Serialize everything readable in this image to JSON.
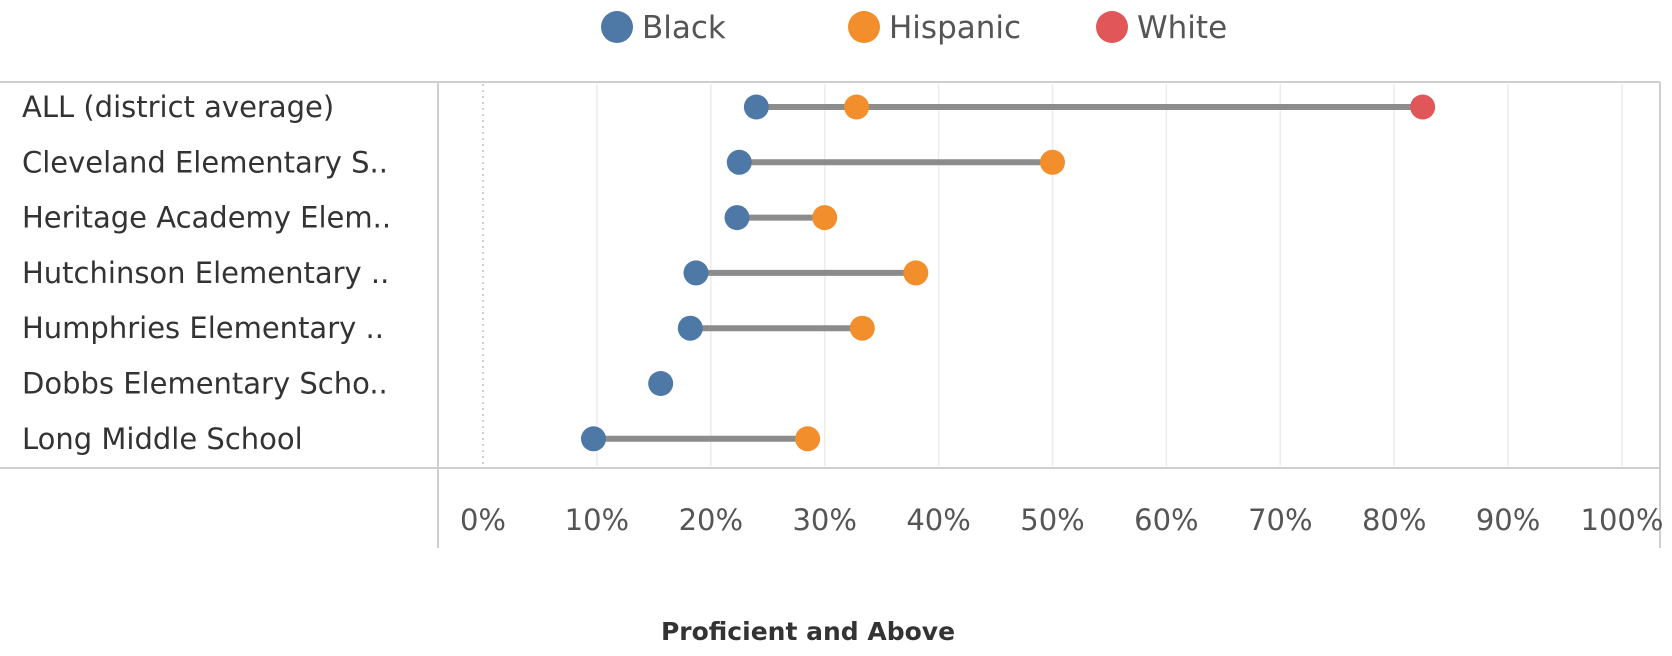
{
  "chart_data": {
    "type": "scatter",
    "xlabel": "Proficient and Above",
    "xlim": [
      0,
      100
    ],
    "x_ticks": [
      "0%",
      "10%",
      "20%",
      "30%",
      "40%",
      "50%",
      "60%",
      "70%",
      "80%",
      "90%",
      "100%"
    ],
    "grid": true,
    "legend_position": "top-center",
    "categories": [
      "ALL (district average)",
      "Cleveland Elementary S..",
      "Heritage Academy Elem..",
      "Hutchinson Elementary ..",
      "Humphries Elementary ..",
      "Dobbs Elementary Scho..",
      "Long Middle School"
    ],
    "series": [
      {
        "name": "Black",
        "color": "#4e79a7",
        "values": [
          24,
          22.5,
          22.3,
          18.7,
          18.2,
          15.6,
          9.7
        ]
      },
      {
        "name": "Hispanic",
        "color": "#f28e2b",
        "values": [
          32.8,
          50,
          30,
          38,
          33.3,
          null,
          28.5
        ]
      },
      {
        "name": "White",
        "color": "#e15759",
        "values": [
          82.5,
          null,
          null,
          null,
          null,
          null,
          null
        ]
      }
    ],
    "connector_color": "#8c8c8c"
  }
}
